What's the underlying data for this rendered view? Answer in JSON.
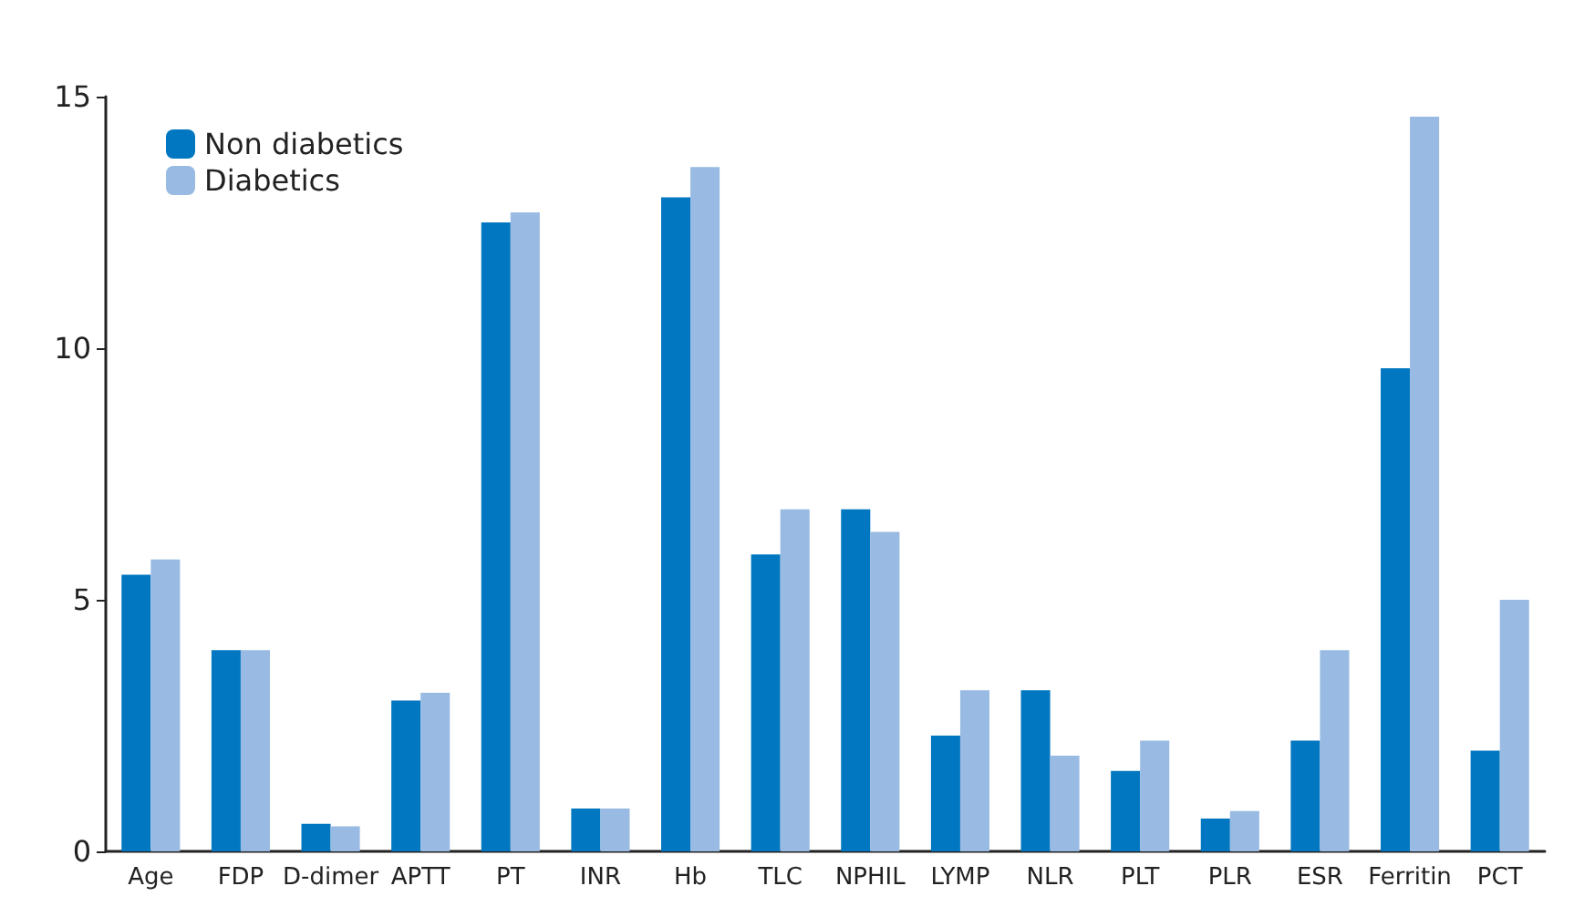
{
  "chart_data": {
    "type": "bar",
    "categories": [
      "Age",
      "FDP",
      "D-dimer",
      "APTT",
      "PT",
      "INR",
      "Hb",
      "TLC",
      "NPHIL",
      "LYMP",
      "NLR",
      "PLT",
      "PLR",
      "ESR",
      "Ferritin",
      "PCT"
    ],
    "series": [
      {
        "name": "Non diabetics",
        "color": "#0077c0",
        "values": [
          5.5,
          4.0,
          0.55,
          3.0,
          12.5,
          0.85,
          13.0,
          5.9,
          6.8,
          2.3,
          3.2,
          1.6,
          0.65,
          2.2,
          9.6,
          2.0
        ]
      },
      {
        "name": "Diabetics",
        "color": "#99bbe3",
        "values": [
          5.8,
          4.0,
          0.5,
          3.15,
          12.7,
          0.85,
          13.6,
          6.8,
          6.35,
          3.2,
          1.9,
          2.2,
          0.8,
          4.0,
          14.6,
          5.0
        ]
      }
    ],
    "ylim": [
      0,
      15
    ],
    "yticks": [
      0,
      5,
      10,
      15
    ],
    "grid": false,
    "legend": "top left"
  }
}
